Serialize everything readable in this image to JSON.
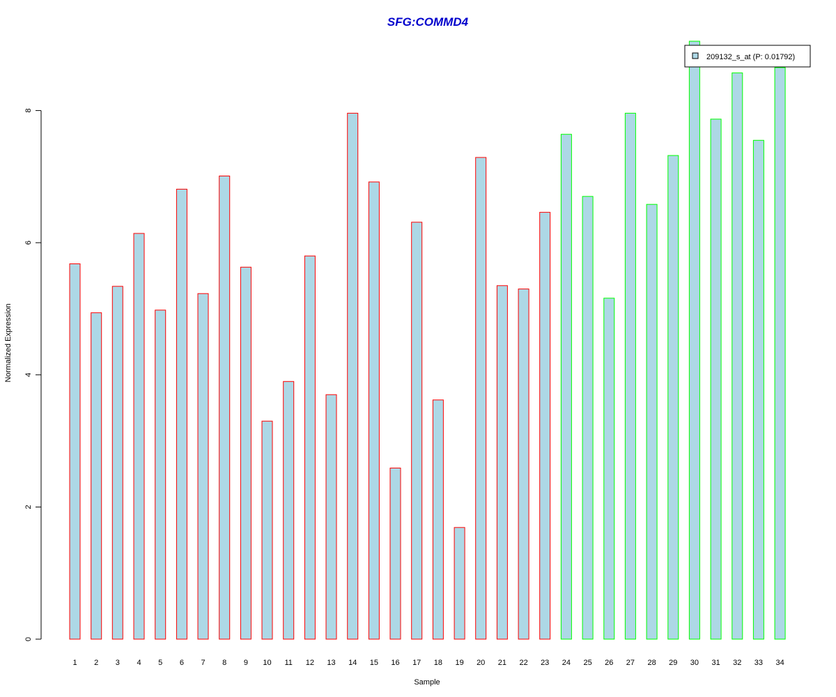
{
  "chart_data": {
    "type": "bar",
    "title": "SFG:COMMD4",
    "xlabel": "Sample",
    "ylabel": "Normalized Expression",
    "categories": [
      "1",
      "2",
      "3",
      "4",
      "5",
      "6",
      "7",
      "8",
      "9",
      "10",
      "11",
      "12",
      "13",
      "14",
      "15",
      "16",
      "17",
      "18",
      "19",
      "20",
      "21",
      "22",
      "23",
      "24",
      "25",
      "26",
      "27",
      "28",
      "29",
      "30",
      "31",
      "32",
      "33",
      "34"
    ],
    "series": [
      {
        "name": "209132_s_at (P: 0.01792)",
        "values": [
          5.68,
          4.94,
          5.34,
          6.14,
          4.98,
          6.81,
          5.23,
          7.01,
          5.63,
          3.3,
          3.9,
          5.8,
          3.7,
          7.96,
          6.92,
          2.59,
          6.31,
          3.62,
          1.69,
          7.29,
          5.35,
          5.3,
          6.46,
          7.64,
          6.7,
          5.16,
          7.96,
          6.58,
          7.32,
          9.05,
          7.87,
          8.57,
          7.55,
          8.65
        ]
      }
    ],
    "groups": [
      "a",
      "a",
      "a",
      "a",
      "a",
      "a",
      "a",
      "a",
      "a",
      "a",
      "a",
      "a",
      "a",
      "a",
      "a",
      "a",
      "a",
      "a",
      "a",
      "a",
      "a",
      "a",
      "a",
      "b",
      "b",
      "b",
      "b",
      "b",
      "b",
      "b",
      "b",
      "b",
      "b",
      "b"
    ],
    "yticks": [
      0,
      2,
      4,
      6,
      8
    ],
    "ylim": [
      0,
      9.05
    ],
    "grid": false,
    "legend_position": "top-right",
    "colors": {
      "bar_fill": "#add8e6",
      "group_a_border": "#ff0000",
      "group_b_border": "#00ff00",
      "title": "#0000cc",
      "axis": "#000000"
    }
  }
}
